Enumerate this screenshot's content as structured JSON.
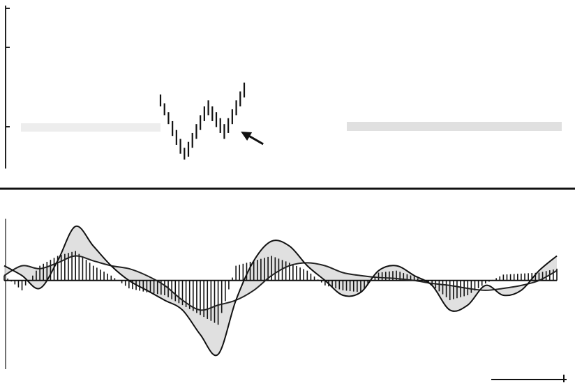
{
  "chart_data": [
    {
      "type": "bar",
      "panel": "price",
      "title": "",
      "xlabel": "",
      "ylabel": "",
      "grid": false,
      "legend": "none",
      "annotations": [
        {
          "type": "arrow",
          "target_bar_index": 17
        }
      ],
      "bars": [
        {
          "high": 100,
          "low": 96
        },
        {
          "high": 97,
          "low": 93
        },
        {
          "high": 94,
          "low": 90
        },
        {
          "high": 91,
          "low": 86
        },
        {
          "high": 88,
          "low": 83
        },
        {
          "high": 85,
          "low": 80
        },
        {
          "high": 82,
          "low": 78
        },
        {
          "high": 84,
          "low": 79
        },
        {
          "high": 87,
          "low": 82
        },
        {
          "high": 90,
          "low": 85
        },
        {
          "high": 93,
          "low": 88
        },
        {
          "high": 96,
          "low": 91
        },
        {
          "high": 98,
          "low": 93
        },
        {
          "high": 96,
          "low": 91
        },
        {
          "high": 94,
          "low": 89
        },
        {
          "high": 92,
          "low": 87
        },
        {
          "high": 90,
          "low": 85
        },
        {
          "high": 92,
          "low": 87
        },
        {
          "high": 95,
          "low": 90
        },
        {
          "high": 98,
          "low": 93
        },
        {
          "high": 101,
          "low": 96
        },
        {
          "high": 104,
          "low": 99
        }
      ],
      "ylim": [
        75,
        130
      ],
      "colors": {
        "bars": "#111111",
        "axis": "#222222"
      }
    },
    {
      "type": "line",
      "panel": "oscillator",
      "title": "",
      "xlabel": "",
      "ylabel": "",
      "grid": false,
      "legend": "none",
      "x": [
        0,
        5,
        10,
        15,
        20,
        25,
        30,
        35,
        40,
        45,
        50,
        55,
        60,
        65,
        70,
        75,
        80,
        85,
        90,
        95,
        100,
        105,
        110,
        115,
        120,
        125,
        130,
        135,
        140,
        145,
        150,
        155
      ],
      "xlim": [
        0,
        155
      ],
      "ylim": [
        -90,
        60
      ],
      "series": [
        {
          "role": "fast-line",
          "values": [
            15,
            5,
            -8,
            20,
            55,
            35,
            15,
            0,
            -10,
            -20,
            -30,
            -55,
            -75,
            -20,
            20,
            40,
            35,
            15,
            0,
            -15,
            -12,
            10,
            15,
            5,
            -5,
            -30,
            -25,
            -5,
            -15,
            -10,
            10,
            25
          ]
        },
        {
          "role": "slow-line",
          "values": [
            5,
            15,
            12,
            18,
            25,
            20,
            15,
            12,
            5,
            -5,
            -20,
            -30,
            -25,
            -20,
            -10,
            5,
            15,
            18,
            15,
            8,
            5,
            3,
            2,
            0,
            -3,
            -5,
            -8,
            -10,
            -8,
            -5,
            0,
            10
          ]
        },
        {
          "role": "histogram",
          "values": [
            5,
            -10,
            15,
            25,
            30,
            15,
            5,
            -8,
            -12,
            -15,
            -25,
            -35,
            -45,
            15,
            20,
            25,
            18,
            10,
            -5,
            -10,
            -12,
            8,
            10,
            4,
            -5,
            -20,
            -15,
            -3,
            6,
            7,
            8,
            12
          ]
        }
      ],
      "colors": {
        "fast-line": "#111111",
        "slow-line": "#222222",
        "histogram": "#111111",
        "fill": "#d8d8d8"
      }
    }
  ]
}
